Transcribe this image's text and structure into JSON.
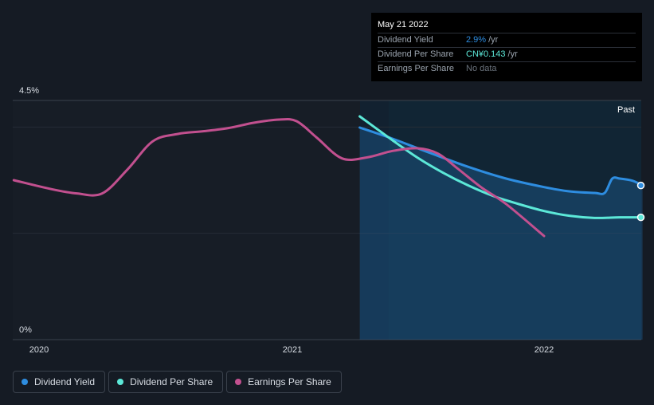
{
  "tooltip": {
    "date": "May 21 2022",
    "rows": [
      {
        "label": "Dividend Yield",
        "value": "2.9%",
        "unit": "/yr",
        "color": "#2e8de0"
      },
      {
        "label": "Dividend Per Share",
        "value": "CN¥0.143",
        "unit": "/yr",
        "color": "#5ce8d8"
      },
      {
        "label": "Earnings Per Share",
        "value": "No data",
        "unit": "",
        "color": "#6a727c"
      }
    ]
  },
  "past_label": "Past",
  "legend": [
    {
      "label": "Dividend Yield",
      "color": "#2e8de0"
    },
    {
      "label": "Dividend Per Share",
      "color": "#5ce8d8"
    },
    {
      "label": "Earnings Per Share",
      "color": "#c2508f"
    }
  ],
  "chart_data": {
    "type": "line",
    "y_tick_labels": [
      "4.5%",
      "0%"
    ],
    "ylim": [
      0,
      4.5
    ],
    "x_tick_labels": [
      "2020",
      "2021",
      "2022"
    ],
    "xlim": [
      2019.9,
      2022.39
    ],
    "grid": true,
    "series": [
      {
        "name": "Dividend Yield",
        "color": "#2e8de0",
        "x": [
          2021.27,
          2021.4,
          2021.55,
          2021.7,
          2021.85,
          2022.0,
          2022.1,
          2022.2,
          2022.24,
          2022.27,
          2022.3,
          2022.35,
          2022.39
        ],
        "y": [
          3.99,
          3.78,
          3.51,
          3.25,
          3.03,
          2.87,
          2.79,
          2.76,
          2.76,
          3.03,
          3.03,
          2.99,
          2.9
        ]
      },
      {
        "name": "Dividend Per Share",
        "color": "#5ce8d8",
        "x": [
          2021.27,
          2021.4,
          2021.5,
          2021.6,
          2021.7,
          2021.8,
          2021.9,
          2022.0,
          2022.1,
          2022.2,
          2022.3,
          2022.39
        ],
        "y": [
          4.2,
          3.75,
          3.42,
          3.14,
          2.9,
          2.7,
          2.55,
          2.42,
          2.33,
          2.29,
          2.3,
          2.3
        ]
      },
      {
        "name": "Earnings Per Share",
        "color": "#c2508f",
        "x": [
          2019.9,
          2020.05,
          2020.15,
          2020.25,
          2020.35,
          2020.45,
          2020.55,
          2020.65,
          2020.75,
          2020.85,
          2020.95,
          2021.02,
          2021.1,
          2021.2,
          2021.3,
          2021.4,
          2021.5,
          2021.58,
          2021.66,
          2021.75,
          2021.85,
          2022.0
        ],
        "y": [
          3.0,
          2.83,
          2.75,
          2.75,
          3.2,
          3.73,
          3.87,
          3.92,
          3.98,
          4.08,
          4.14,
          4.11,
          3.8,
          3.41,
          3.43,
          3.55,
          3.6,
          3.5,
          3.21,
          2.87,
          2.55,
          1.95
        ]
      }
    ]
  }
}
